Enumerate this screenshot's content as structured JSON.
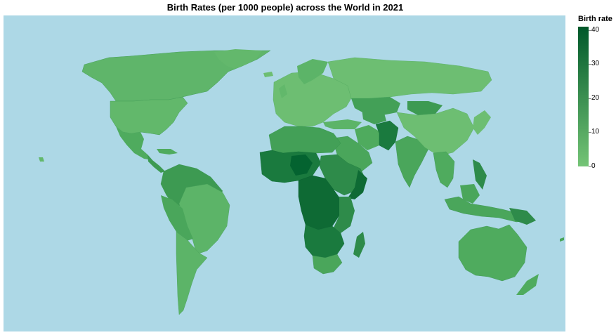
{
  "title": "Birth Rates (per 1000 people) across the World in 2021",
  "colors": {
    "ocean": "#add8e6",
    "scale_min": "#74c476",
    "scale_max": "#00582a",
    "land_low": "#66bb6a",
    "land_mid": "#4fab5e",
    "land_high": "#2e8b4a",
    "land_higher": "#1a7a3e",
    "land_highest": "#046330"
  },
  "legend": {
    "title": "Birth rate",
    "ticks": [
      {
        "label": "40",
        "value": 40
      },
      {
        "label": "30",
        "value": 30
      },
      {
        "label": "20",
        "value": 20
      },
      {
        "label": "10",
        "value": 10
      },
      {
        "label": "0",
        "value": 0
      }
    ],
    "domain": [
      0,
      41
    ]
  }
}
